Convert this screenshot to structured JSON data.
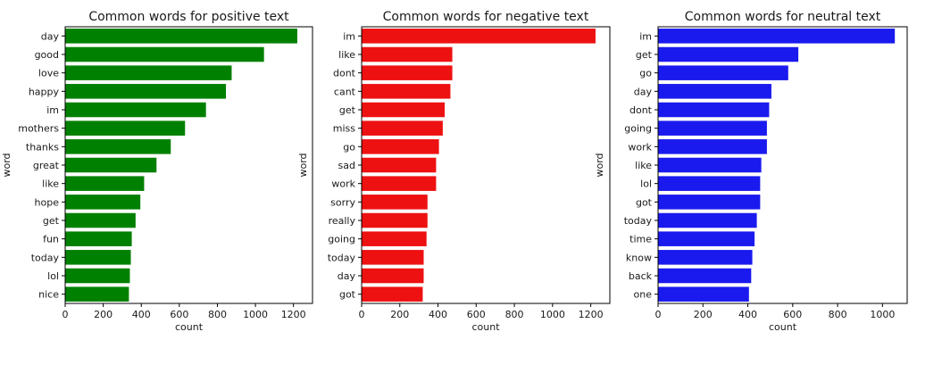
{
  "chart_data": [
    {
      "type": "bar",
      "orientation": "horizontal",
      "title": "Common words for positive text",
      "xlabel": "count",
      "ylabel": "word",
      "xlim": [
        0,
        1300
      ],
      "xticks": [
        0,
        200,
        400,
        600,
        800,
        1000,
        1200
      ],
      "color": "#008000",
      "grid": false,
      "categories": [
        "day",
        "good",
        "love",
        "happy",
        "im",
        "mothers",
        "thanks",
        "great",
        "like",
        "hope",
        "get",
        "fun",
        "today",
        "lol",
        "nice"
      ],
      "values": [
        1220,
        1045,
        875,
        845,
        740,
        630,
        555,
        480,
        415,
        395,
        370,
        350,
        345,
        340,
        335
      ]
    },
    {
      "type": "bar",
      "orientation": "horizontal",
      "title": "Common words for negative text",
      "xlabel": "count",
      "ylabel": "word",
      "xlim": [
        0,
        1300
      ],
      "xticks": [
        0,
        200,
        400,
        600,
        800,
        1000,
        1200
      ],
      "color": "#ee1111",
      "grid": false,
      "categories": [
        "im",
        "like",
        "dont",
        "cant",
        "get",
        "miss",
        "go",
        "sad",
        "work",
        "sorry",
        "really",
        "going",
        "today",
        "day",
        "got"
      ],
      "values": [
        1225,
        475,
        475,
        465,
        435,
        425,
        405,
        390,
        390,
        345,
        345,
        340,
        325,
        325,
        320
      ]
    },
    {
      "type": "bar",
      "orientation": "horizontal",
      "title": "Common words for neutral text",
      "xlabel": "count",
      "ylabel": "word",
      "xlim": [
        0,
        1110
      ],
      "xticks": [
        0,
        200,
        400,
        600,
        800,
        1000
      ],
      "color": "#1a1aee",
      "grid": false,
      "categories": [
        "im",
        "get",
        "go",
        "day",
        "dont",
        "going",
        "work",
        "like",
        "lol",
        "got",
        "today",
        "time",
        "know",
        "back",
        "one"
      ],
      "values": [
        1055,
        625,
        580,
        505,
        495,
        485,
        485,
        460,
        455,
        455,
        440,
        430,
        420,
        415,
        405
      ]
    }
  ]
}
